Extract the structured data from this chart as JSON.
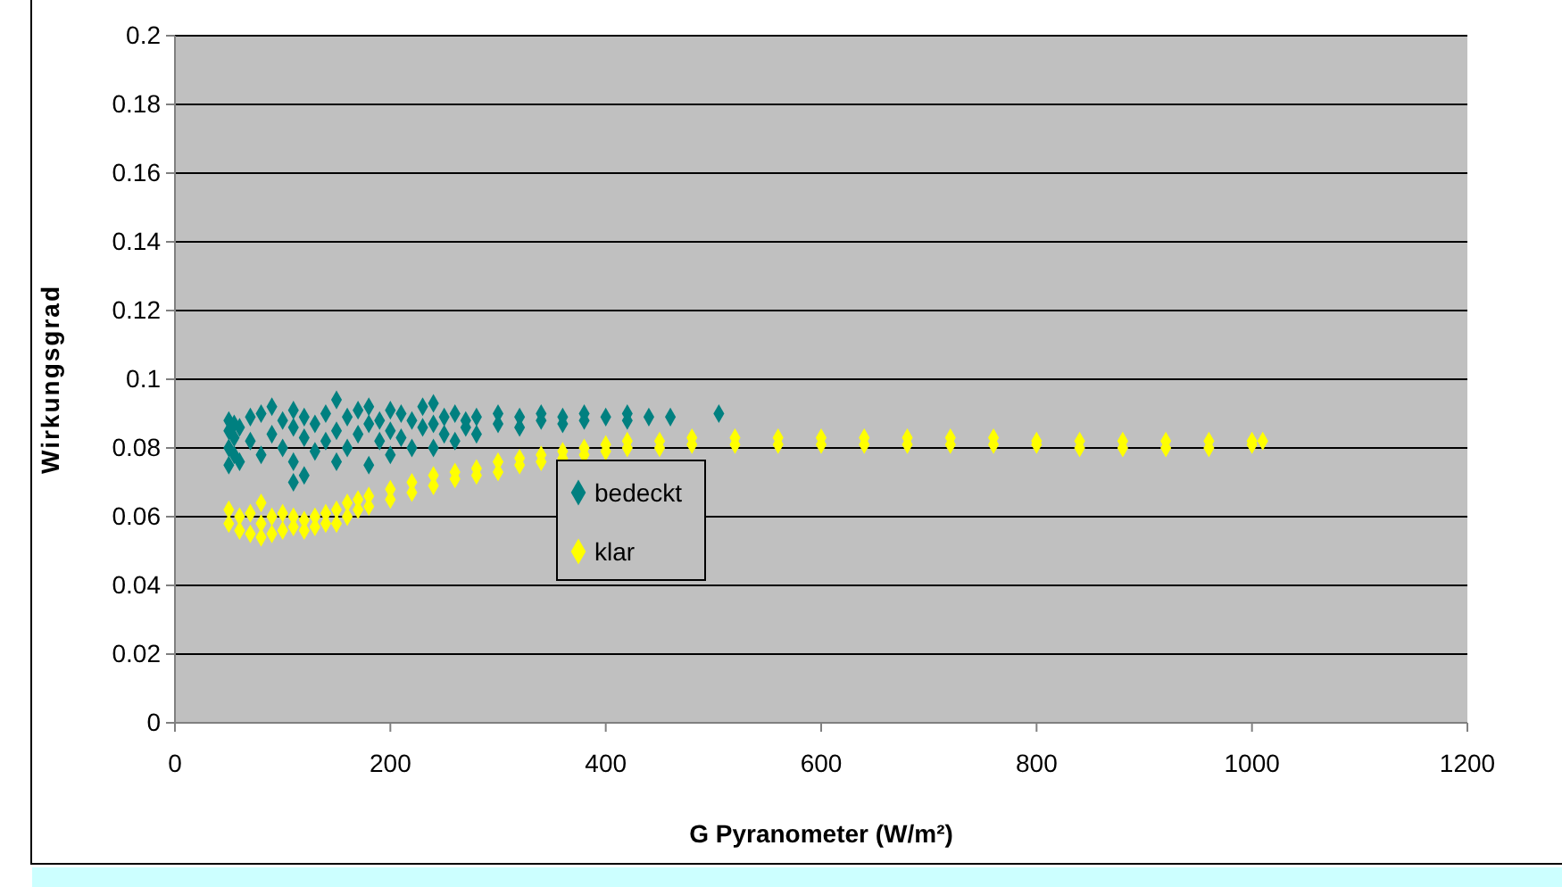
{
  "chart_data": {
    "type": "scatter",
    "xlabel": "G Pyranometer (W/m²)",
    "ylabel": "Wirkungsgrad",
    "xlim": [
      0,
      1200
    ],
    "xticks": [
      0,
      200,
      400,
      600,
      800,
      1000,
      1200
    ],
    "ylim": [
      0,
      0.2
    ],
    "yticks": [
      0,
      0.02,
      0.04,
      0.06,
      0.08,
      0.1,
      0.12,
      0.14,
      0.16,
      0.18,
      0.2
    ],
    "grid": "y",
    "legend": "center",
    "marker": "diamond",
    "series": [
      {
        "name": "bedeckt",
        "color": "#008080",
        "x": [
          50,
          50,
          50,
          50,
          55,
          55,
          55,
          60,
          60,
          70,
          70,
          80,
          80,
          90,
          90,
          100,
          100,
          110,
          110,
          110,
          110,
          120,
          120,
          120,
          130,
          130,
          140,
          140,
          150,
          150,
          150,
          160,
          160,
          170,
          170,
          180,
          180,
          180,
          190,
          190,
          200,
          200,
          200,
          210,
          210,
          220,
          220,
          230,
          230,
          240,
          240,
          240,
          250,
          250,
          260,
          260,
          270,
          270,
          280,
          280,
          300,
          300,
          320,
          320,
          340,
          340,
          360,
          360,
          380,
          380,
          400,
          420,
          420,
          440,
          460,
          505
        ],
        "values": [
          0.075,
          0.08,
          0.085,
          0.088,
          0.078,
          0.083,
          0.087,
          0.076,
          0.086,
          0.082,
          0.089,
          0.078,
          0.09,
          0.084,
          0.092,
          0.08,
          0.088,
          0.07,
          0.076,
          0.086,
          0.091,
          0.072,
          0.083,
          0.089,
          0.079,
          0.087,
          0.082,
          0.09,
          0.094,
          0.085,
          0.076,
          0.08,
          0.089,
          0.084,
          0.091,
          0.075,
          0.092,
          0.087,
          0.082,
          0.088,
          0.078,
          0.085,
          0.091,
          0.083,
          0.09,
          0.08,
          0.088,
          0.086,
          0.092,
          0.093,
          0.08,
          0.087,
          0.084,
          0.089,
          0.082,
          0.09,
          0.086,
          0.088,
          0.084,
          0.089,
          0.087,
          0.09,
          0.086,
          0.089,
          0.088,
          0.09,
          0.087,
          0.089,
          0.088,
          0.09,
          0.089,
          0.088,
          0.09,
          0.089,
          0.089,
          0.09
        ]
      },
      {
        "name": "klar",
        "color": "#ffff00",
        "x": [
          50,
          50,
          60,
          60,
          70,
          70,
          80,
          80,
          80,
          90,
          90,
          100,
          100,
          110,
          110,
          120,
          120,
          130,
          130,
          140,
          140,
          150,
          150,
          160,
          160,
          170,
          170,
          180,
          180,
          200,
          200,
          220,
          220,
          240,
          240,
          260,
          260,
          280,
          280,
          300,
          300,
          320,
          320,
          340,
          340,
          360,
          360,
          380,
          380,
          400,
          400,
          420,
          420,
          450,
          450,
          480,
          480,
          520,
          520,
          560,
          560,
          600,
          600,
          640,
          640,
          680,
          680,
          720,
          720,
          760,
          760,
          800,
          800,
          840,
          840,
          880,
          880,
          920,
          920,
          960,
          960,
          1000,
          1000,
          1010
        ],
        "values": [
          0.062,
          0.058,
          0.06,
          0.056,
          0.055,
          0.061,
          0.054,
          0.058,
          0.064,
          0.055,
          0.06,
          0.056,
          0.061,
          0.057,
          0.06,
          0.056,
          0.059,
          0.057,
          0.06,
          0.058,
          0.061,
          0.058,
          0.062,
          0.06,
          0.064,
          0.062,
          0.065,
          0.063,
          0.066,
          0.065,
          0.068,
          0.067,
          0.07,
          0.069,
          0.072,
          0.071,
          0.073,
          0.072,
          0.074,
          0.073,
          0.076,
          0.075,
          0.077,
          0.076,
          0.078,
          0.077,
          0.079,
          0.078,
          0.08,
          0.079,
          0.081,
          0.08,
          0.082,
          0.08,
          0.082,
          0.081,
          0.083,
          0.081,
          0.083,
          0.081,
          0.083,
          0.081,
          0.083,
          0.081,
          0.083,
          0.081,
          0.083,
          0.081,
          0.083,
          0.081,
          0.083,
          0.081,
          0.082,
          0.08,
          0.082,
          0.08,
          0.082,
          0.08,
          0.082,
          0.08,
          0.082,
          0.081,
          0.082,
          0.082
        ]
      }
    ]
  }
}
